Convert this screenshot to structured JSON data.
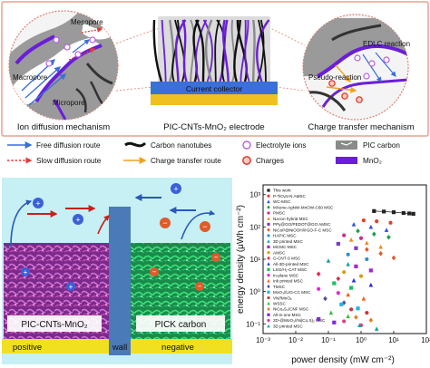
{
  "top_panel": {
    "labels": {
      "mesopore": "Mesopore",
      "macropore": "Macropore",
      "micropore": "Micropore",
      "current_collector": "Current collector",
      "edlc_reaction": "EDLC reaction",
      "pseudo_reaction": "Pseudo-reaction"
    },
    "captions": {
      "left": "Ion diffusion mechanism",
      "center": "PIC-CNTs-MnO₂ electrode",
      "right": "Charge transfer mechanism"
    }
  },
  "legend": {
    "items": [
      {
        "label": "Free diffusion route",
        "icon": "blue-arrow-icon",
        "color": "#3a6fd8"
      },
      {
        "label": "Carbon nanotubes",
        "icon": "black-tube-icon",
        "color": "#111111"
      },
      {
        "label": "Electrolyte ions",
        "icon": "purple-circle-icon",
        "color": "#b85ee0"
      },
      {
        "label": "PIC carbon",
        "icon": "gray-carbon-icon",
        "color": "#8a8a8a"
      },
      {
        "label": "Slow diffusion route",
        "icon": "red-dashed-arrow-icon",
        "color": "#e23a3a"
      },
      {
        "label": "Charge transfer route",
        "icon": "orange-arrow-icon",
        "color": "#f0a020"
      },
      {
        "label": "Charges",
        "icon": "red-charge-icon",
        "color": "#d8321f"
      },
      {
        "label": "MnO₂",
        "icon": "purple-bar-icon",
        "color": "#6a1ed8"
      }
    ]
  },
  "device": {
    "left_label": "PIC-CNTs-MnO₂",
    "right_label": "PICK carbon",
    "bottom": {
      "positive": "positive",
      "wall": "wall",
      "negative": "negative"
    }
  },
  "chart_data": {
    "type": "scatter",
    "xlabel": "power density (mW cm⁻²)",
    "ylabel": "energy density (μWh cm⁻²)",
    "x_log": true,
    "y_log": true,
    "xlim": [
      0.001,
      100
    ],
    "ylim": [
      0.05,
      2000
    ],
    "x_ticks": [
      "10⁻³",
      "10⁻²",
      "10⁻¹",
      "10⁰",
      "10¹",
      "10²"
    ],
    "y_ticks": [
      "10⁻¹",
      "10⁰",
      "10¹",
      "10²",
      "10³"
    ],
    "legend_position": "left-inside",
    "series": [
      {
        "name": "This work",
        "color": "#222222",
        "marker": "square",
        "points": [
          [
            2.5,
            310
          ],
          [
            5,
            300
          ],
          [
            10,
            285
          ],
          [
            20,
            270
          ],
          [
            30,
            262
          ],
          [
            40,
            255
          ]
        ]
      },
      {
        "name": "P-TiOₓN·N AMSC",
        "color": "#e0402a",
        "marker": "circle",
        "points": [
          [
            1.2,
            160
          ],
          [
            3,
            150
          ],
          [
            8,
            135
          ]
        ]
      },
      {
        "name": "WC-MSC",
        "color": "#2a50e0",
        "marker": "triangle",
        "points": [
          [
            0.6,
            120
          ],
          [
            2,
            100
          ],
          [
            6,
            80
          ]
        ]
      },
      {
        "name": "MXene-AgNW-MnOW-C60 MSC",
        "color": "#18a048",
        "marker": "diamond",
        "points": [
          [
            0.8,
            75
          ],
          [
            2.5,
            60
          ],
          [
            7,
            48
          ]
        ]
      },
      {
        "name": "PMSC",
        "color": "#d02a8a",
        "marker": "circle",
        "points": [
          [
            0.3,
            55
          ],
          [
            1,
            45
          ]
        ]
      },
      {
        "name": "Na-ion hybrid MSC",
        "color": "#f08a20",
        "marker": "triangle",
        "points": [
          [
            0.5,
            40
          ],
          [
            1.5,
            32
          ],
          [
            4,
            24
          ]
        ]
      },
      {
        "name": "PPy@GO/PEDOT@GO AMSC",
        "color": "#7a3ad0",
        "marker": "square",
        "points": [
          [
            0.2,
            30
          ],
          [
            0.7,
            22
          ]
        ]
      },
      {
        "name": "NiCoP@NiOOH//rGO-F-C MSC",
        "color": "#e05a2a",
        "marker": "diamond",
        "points": [
          [
            1.5,
            20
          ],
          [
            4,
            15
          ],
          [
            10,
            11
          ]
        ]
      },
      {
        "name": "HAPIC MSC",
        "color": "#2a90d0",
        "marker": "circle",
        "points": [
          [
            0.4,
            14
          ],
          [
            1.5,
            10
          ]
        ]
      },
      {
        "name": "3D printed MSC",
        "color": "#18a0a0",
        "marker": "triangle",
        "points": [
          [
            0.1,
            9
          ],
          [
            0.4,
            7
          ]
        ]
      },
      {
        "name": "MCMC-MSC",
        "color": "#a02ad0",
        "marker": "square",
        "points": [
          [
            0.7,
            6
          ],
          [
            2,
            4.5
          ]
        ]
      },
      {
        "name": "AMSC",
        "color": "#d0a018",
        "marker": "circle",
        "points": [
          [
            0.3,
            4
          ],
          [
            1,
            3
          ]
        ]
      },
      {
        "name": "G-CNT-S MSC",
        "color": "#e02a4a",
        "marker": "diamond",
        "points": [
          [
            0.05,
            3.5
          ],
          [
            0.2,
            2.5
          ]
        ]
      },
      {
        "name": "All-3D-printed MSC",
        "color": "#2a2ae0",
        "marker": "triangle",
        "points": [
          [
            0.6,
            2.2
          ],
          [
            2,
            1.6
          ]
        ]
      },
      {
        "name": "LSG/H₂-CAT MSC",
        "color": "#18c060",
        "marker": "square",
        "points": [
          [
            0.15,
            1.8
          ],
          [
            0.5,
            1.3
          ]
        ]
      },
      {
        "name": "In-plane MSC",
        "color": "#e02ad0",
        "marker": "circle",
        "points": [
          [
            0.05,
            1.2
          ],
          [
            0.2,
            0.9
          ]
        ]
      },
      {
        "name": "Ink printed MSC",
        "color": "#f06020",
        "marker": "triangle",
        "points": [
          [
            0.4,
            0.8
          ],
          [
            1.2,
            0.6
          ]
        ]
      },
      {
        "name": "TMSC",
        "color": "#5050a0",
        "marker": "diamond",
        "points": [
          [
            0.08,
            0.6
          ],
          [
            0.3,
            0.45
          ]
        ]
      },
      {
        "name": "MoO₃//LIG-CC MSC",
        "color": "#2ab0e0",
        "marker": "square",
        "points": [
          [
            0.25,
            0.4
          ],
          [
            0.8,
            0.3
          ]
        ]
      },
      {
        "name": "VN//MnOₓ",
        "color": "#c03a3a",
        "marker": "circle",
        "points": [
          [
            0.5,
            0.28
          ],
          [
            1.5,
            0.22
          ]
        ]
      },
      {
        "name": "WSSC",
        "color": "#3ac03a",
        "marker": "triangle",
        "points": [
          [
            0.12,
            0.22
          ],
          [
            0.4,
            0.17
          ]
        ]
      },
      {
        "name": "NiCo₂S₄/CNF MSC",
        "color": "#e0802a",
        "marker": "diamond",
        "points": [
          [
            0.7,
            0.16
          ],
          [
            2,
            0.13
          ]
        ]
      },
      {
        "name": "All-in-one MSC",
        "color": "#802ae0",
        "marker": "square",
        "points": [
          [
            0.05,
            0.14
          ],
          [
            0.15,
            0.11
          ]
        ]
      },
      {
        "name": "2D-@MoO₃//Ni(Co,S)₂ MSC",
        "color": "#e03a8a",
        "marker": "circle",
        "points": [
          [
            0.3,
            0.12
          ],
          [
            1,
            0.09
          ]
        ]
      },
      {
        "name": "3D printed MSC",
        "color": "#18a0a0",
        "marker": "triangle",
        "points": [
          [
            0.9,
            0.09
          ],
          [
            3,
            0.07
          ]
        ]
      }
    ]
  }
}
